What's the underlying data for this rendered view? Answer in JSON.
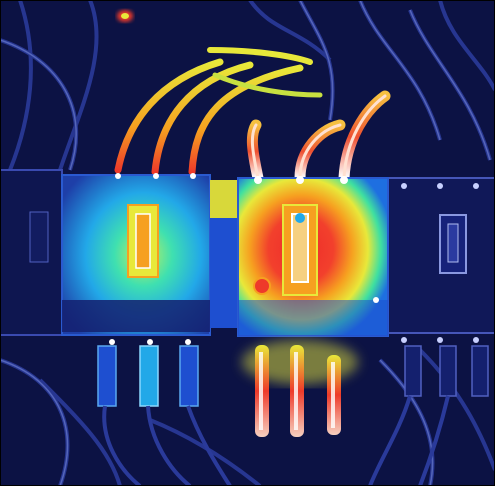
{
  "image": {
    "subject": "thermal-image",
    "palette": [
      "#0a0f3a",
      "#14206e",
      "#1e4fd0",
      "#22b8e8",
      "#3fe0a0",
      "#e8e83a",
      "#f6a020",
      "#ee3a2a",
      "#ffffff"
    ]
  }
}
